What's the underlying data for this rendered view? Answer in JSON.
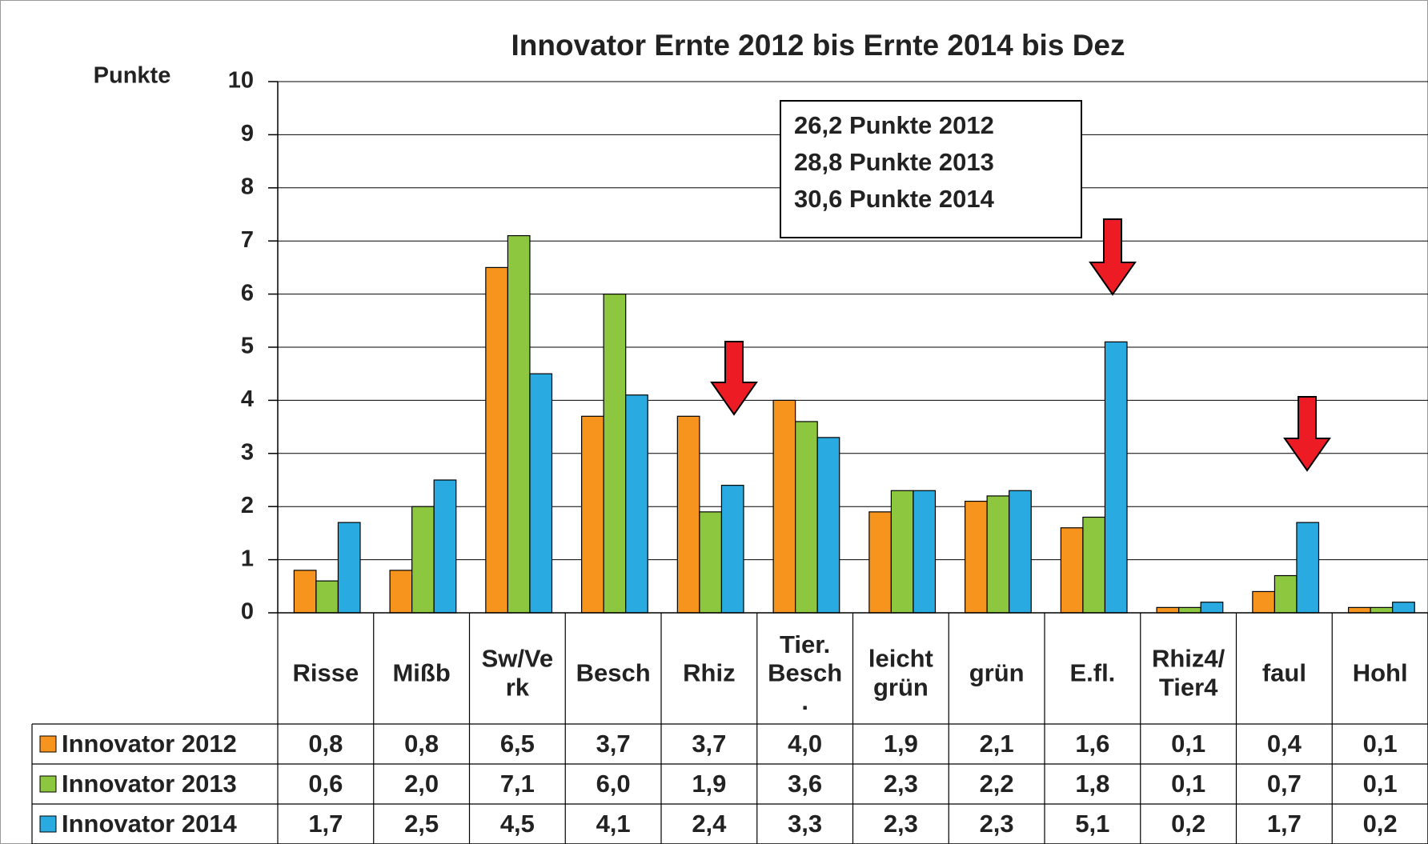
{
  "chart_data": {
    "type": "bar",
    "title": "Innovator Ernte 2012 bis Ernte 2014 bis Dez",
    "y_label": "Punkte",
    "annotation": [
      "26,2 Punkte 2012",
      "28,8 Punkte 2013",
      "30,6 Punkte 2014"
    ],
    "categories": [
      "Risse",
      "Mißb",
      "Sw/Ve\nrk",
      "Besch",
      "Rhiz",
      "Tier.\nBesch\n.",
      "leicht\ngrün",
      "grün",
      "E.fl.",
      "Rhiz4/\nTier4",
      "faul",
      "Hohl"
    ],
    "series": [
      {
        "name": "Innovator 2012",
        "color": "#f7941d",
        "values": [
          0.8,
          0.8,
          6.5,
          3.7,
          3.7,
          4.0,
          1.9,
          2.1,
          1.6,
          0.1,
          0.4,
          0.1
        ],
        "value_labels": [
          "0,8",
          "0,8",
          "6,5",
          "3,7",
          "3,7",
          "4,0",
          "1,9",
          "2,1",
          "1,6",
          "0,1",
          "0,4",
          "0,1"
        ]
      },
      {
        "name": "Innovator 2013",
        "color": "#8dc63f",
        "values": [
          0.6,
          2.0,
          7.1,
          6.0,
          1.9,
          3.6,
          2.3,
          2.2,
          1.8,
          0.1,
          0.7,
          0.1
        ],
        "value_labels": [
          "0,6",
          "2,0",
          "7,1",
          "6,0",
          "1,9",
          "3,6",
          "2,3",
          "2,2",
          "1,8",
          "0,1",
          "0,7",
          "0,1"
        ]
      },
      {
        "name": "Innovator 2014",
        "color": "#29abe2",
        "values": [
          1.7,
          2.5,
          4.5,
          4.1,
          2.4,
          3.3,
          2.3,
          2.3,
          5.1,
          0.2,
          1.7,
          0.2
        ],
        "value_labels": [
          "1,7",
          "2,5",
          "4,5",
          "4,1",
          "2,4",
          "3,3",
          "2,3",
          "2,3",
          "5,1",
          "0,2",
          "1,7",
          "0,2"
        ]
      }
    ],
    "ylim": [
      0,
      10
    ],
    "yticks": [
      0,
      1,
      2,
      3,
      4,
      5,
      6,
      7,
      8,
      9,
      10
    ],
    "grid": true
  }
}
